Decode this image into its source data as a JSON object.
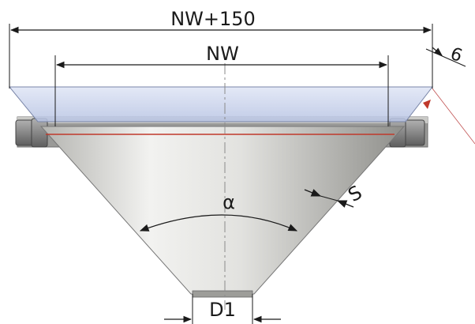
{
  "dimensions": {
    "overall_width": "NW+150",
    "nominal_width": "NW",
    "flange_thickness": "6",
    "wall_thickness": "S",
    "cone_angle": "α",
    "outlet_diameter": "D1"
  },
  "colors": {
    "cone_light": "#f2f2f0",
    "cone_dark": "#a6a6a2",
    "glass": "#bcc8e6",
    "flange": "#8f8f8f",
    "seal_line": "#c0392b",
    "dimension_line": "#1a1a1a",
    "centerline": "#8a8a8a"
  }
}
